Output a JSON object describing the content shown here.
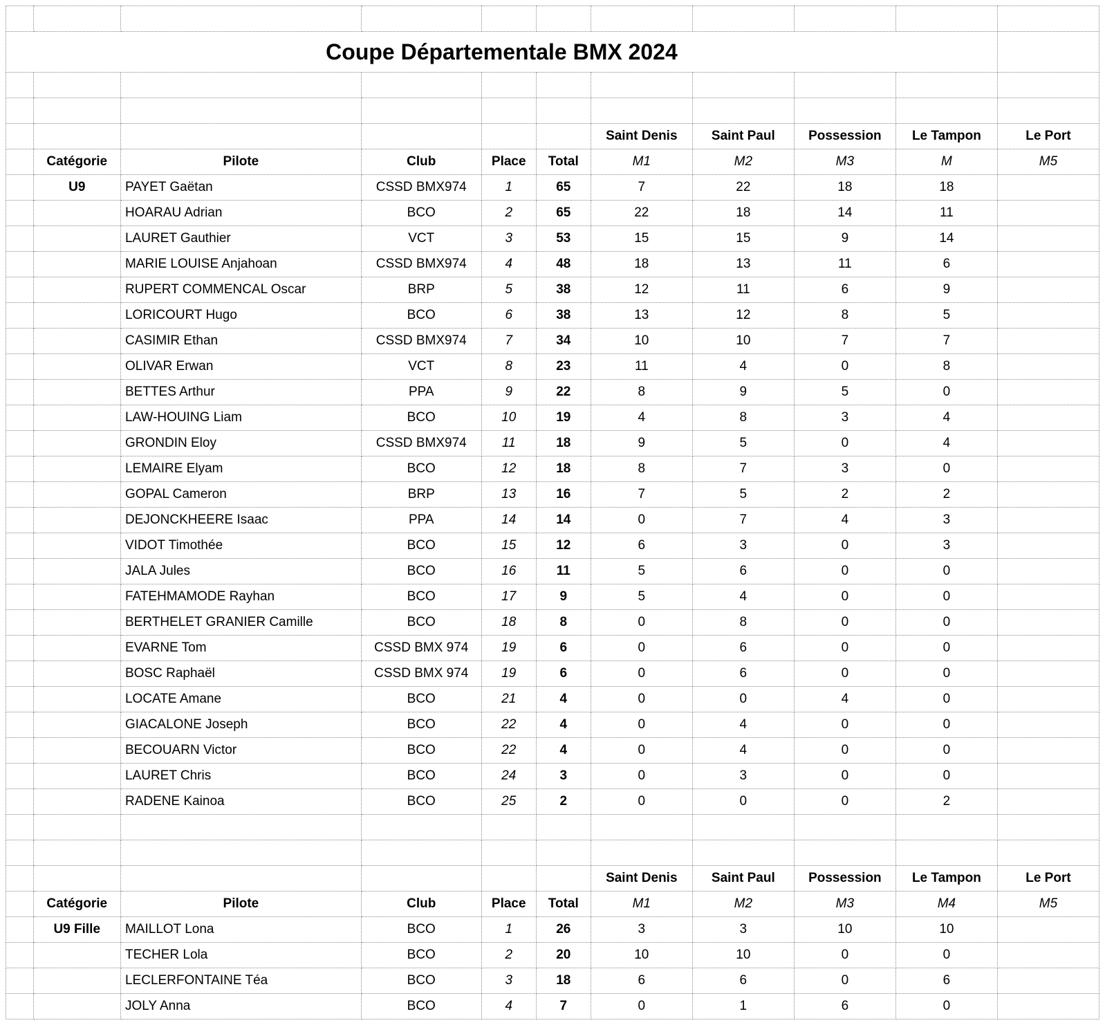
{
  "title": "Coupe Départementale BMX 2024",
  "locations": [
    "Saint Denis",
    "Saint Paul",
    "Possession",
    "Le Tampon",
    "Le Port"
  ],
  "columns": {
    "categorie": "Catégorie",
    "pilote": "Pilote",
    "club": "Club",
    "place": "Place",
    "total": "Total"
  },
  "section1": {
    "category": "U9",
    "m_labels": [
      "M1",
      "M2",
      "M3",
      "M",
      "M5"
    ],
    "rows": [
      {
        "cat": "U9",
        "pilote": "PAYET Gaëtan",
        "club": "CSSD BMX974",
        "place": "1",
        "total": "65",
        "m": [
          "7",
          "22",
          "18",
          "18",
          ""
        ]
      },
      {
        "cat": "",
        "pilote": "HOARAU Adrian",
        "club": "BCO",
        "place": "2",
        "total": "65",
        "m": [
          "22",
          "18",
          "14",
          "11",
          ""
        ]
      },
      {
        "cat": "",
        "pilote": "LAURET Gauthier",
        "club": "VCT",
        "place": "3",
        "total": "53",
        "m": [
          "15",
          "15",
          "9",
          "14",
          ""
        ]
      },
      {
        "cat": "",
        "pilote": "MARIE LOUISE Anjahoan",
        "club": "CSSD BMX974",
        "place": "4",
        "total": "48",
        "m": [
          "18",
          "13",
          "11",
          "6",
          ""
        ]
      },
      {
        "cat": "",
        "pilote": "RUPERT COMMENCAL Oscar",
        "club": "BRP",
        "place": "5",
        "total": "38",
        "m": [
          "12",
          "11",
          "6",
          "9",
          ""
        ]
      },
      {
        "cat": "",
        "pilote": "LORICOURT Hugo",
        "club": "BCO",
        "place": "6",
        "total": "38",
        "m": [
          "13",
          "12",
          "8",
          "5",
          ""
        ]
      },
      {
        "cat": "",
        "pilote": "CASIMIR Ethan",
        "club": "CSSD BMX974",
        "place": "7",
        "total": "34",
        "m": [
          "10",
          "10",
          "7",
          "7",
          ""
        ]
      },
      {
        "cat": "",
        "pilote": "OLIVAR Erwan",
        "club": "VCT",
        "place": "8",
        "total": "23",
        "m": [
          "11",
          "4",
          "0",
          "8",
          ""
        ]
      },
      {
        "cat": "",
        "pilote": "BETTES Arthur",
        "club": "PPA",
        "place": "9",
        "total": "22",
        "m": [
          "8",
          "9",
          "5",
          "0",
          ""
        ]
      },
      {
        "cat": "",
        "pilote": "LAW-HOUING Liam",
        "club": "BCO",
        "place": "10",
        "total": "19",
        "m": [
          "4",
          "8",
          "3",
          "4",
          ""
        ]
      },
      {
        "cat": "",
        "pilote": "GRONDIN Eloy",
        "club": "CSSD BMX974",
        "place": "11",
        "total": "18",
        "m": [
          "9",
          "5",
          "0",
          "4",
          ""
        ]
      },
      {
        "cat": "",
        "pilote": "LEMAIRE Elyam",
        "club": "BCO",
        "place": "12",
        "total": "18",
        "m": [
          "8",
          "7",
          "3",
          "0",
          ""
        ]
      },
      {
        "cat": "",
        "pilote": "GOPAL Cameron",
        "club": "BRP",
        "place": "13",
        "total": "16",
        "m": [
          "7",
          "5",
          "2",
          "2",
          ""
        ]
      },
      {
        "cat": "",
        "pilote": "DEJONCKHEERE Isaac",
        "club": "PPA",
        "place": "14",
        "total": "14",
        "m": [
          "0",
          "7",
          "4",
          "3",
          ""
        ]
      },
      {
        "cat": "",
        "pilote": "VIDOT Timothée",
        "club": "BCO",
        "place": "15",
        "total": "12",
        "m": [
          "6",
          "3",
          "0",
          "3",
          ""
        ]
      },
      {
        "cat": "",
        "pilote": "JALA Jules",
        "club": "BCO",
        "place": "16",
        "total": "11",
        "m": [
          "5",
          "6",
          "0",
          "0",
          ""
        ]
      },
      {
        "cat": "",
        "pilote": "FATEHMAMODE Rayhan",
        "club": "BCO",
        "place": "17",
        "total": "9",
        "m": [
          "5",
          "4",
          "0",
          "0",
          ""
        ]
      },
      {
        "cat": "",
        "pilote": "BERTHELET GRANIER Camille",
        "club": "BCO",
        "place": "18",
        "total": "8",
        "m": [
          "0",
          "8",
          "0",
          "0",
          ""
        ]
      },
      {
        "cat": "",
        "pilote": "EVARNE Tom",
        "club": "CSSD BMX 974",
        "place": "19",
        "total": "6",
        "m": [
          "0",
          "6",
          "0",
          "0",
          ""
        ]
      },
      {
        "cat": "",
        "pilote": "BOSC Raphaël",
        "club": "CSSD BMX 974",
        "place": "19",
        "total": "6",
        "m": [
          "0",
          "6",
          "0",
          "0",
          ""
        ]
      },
      {
        "cat": "",
        "pilote": "LOCATE Amane",
        "club": "BCO",
        "place": "21",
        "total": "4",
        "m": [
          "0",
          "0",
          "4",
          "0",
          ""
        ]
      },
      {
        "cat": "",
        "pilote": "GIACALONE Joseph",
        "club": "BCO",
        "place": "22",
        "total": "4",
        "m": [
          "0",
          "4",
          "0",
          "0",
          ""
        ]
      },
      {
        "cat": "",
        "pilote": "BECOUARN Victor",
        "club": "BCO",
        "place": "22",
        "total": "4",
        "m": [
          "0",
          "4",
          "0",
          "0",
          ""
        ]
      },
      {
        "cat": "",
        "pilote": "LAURET Chris",
        "club": "BCO",
        "place": "24",
        "total": "3",
        "m": [
          "0",
          "3",
          "0",
          "0",
          ""
        ]
      },
      {
        "cat": "",
        "pilote": "RADENE Kainoa",
        "club": "BCO",
        "place": "25",
        "total": "2",
        "m": [
          "0",
          "0",
          "0",
          "2",
          ""
        ]
      }
    ]
  },
  "section2": {
    "category": "U9 Fille",
    "m_labels": [
      "M1",
      "M2",
      "M3",
      "M4",
      "M5"
    ],
    "rows": [
      {
        "cat": "U9 Fille",
        "pilote": "MAILLOT Lona",
        "club": "BCO",
        "place": "1",
        "total": "26",
        "m": [
          "3",
          "3",
          "10",
          "10",
          ""
        ]
      },
      {
        "cat": "",
        "pilote": "TECHER Lola",
        "club": "BCO",
        "place": "2",
        "total": "20",
        "m": [
          "10",
          "10",
          "0",
          "0",
          ""
        ]
      },
      {
        "cat": "",
        "pilote": "LECLERFONTAINE Téa",
        "club": "BCO",
        "place": "3",
        "total": "18",
        "m": [
          "6",
          "6",
          "0",
          "6",
          ""
        ]
      },
      {
        "cat": "",
        "pilote": "JOLY Anna",
        "club": "BCO",
        "place": "4",
        "total": "7",
        "m": [
          "0",
          "1",
          "6",
          "0",
          ""
        ]
      }
    ]
  },
  "style": {
    "background_color": "#ffffff",
    "border_style": "dotted",
    "border_color": "#888888",
    "title_fontsize": 32,
    "body_fontsize": 19
  }
}
